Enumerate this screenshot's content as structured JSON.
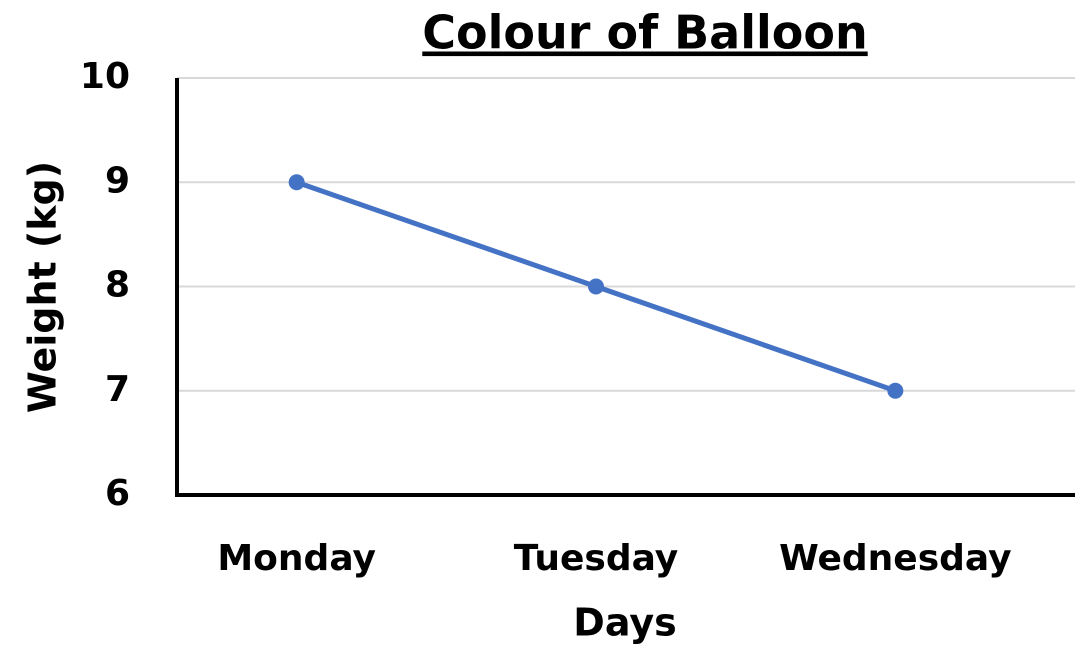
{
  "chart_data": {
    "type": "line",
    "title": "Colour of Balloon",
    "x_label": "Days",
    "y_label": "Weight (kg)",
    "categories": [
      "Monday",
      "Tuesday",
      "Wednesday"
    ],
    "series": [
      {
        "name": "Weight",
        "color": "#4472c4",
        "values": [
          9,
          8,
          7
        ]
      }
    ],
    "ylim": [
      6,
      10
    ],
    "yticks": [
      6,
      7,
      8,
      9,
      10
    ],
    "grid": true
  }
}
